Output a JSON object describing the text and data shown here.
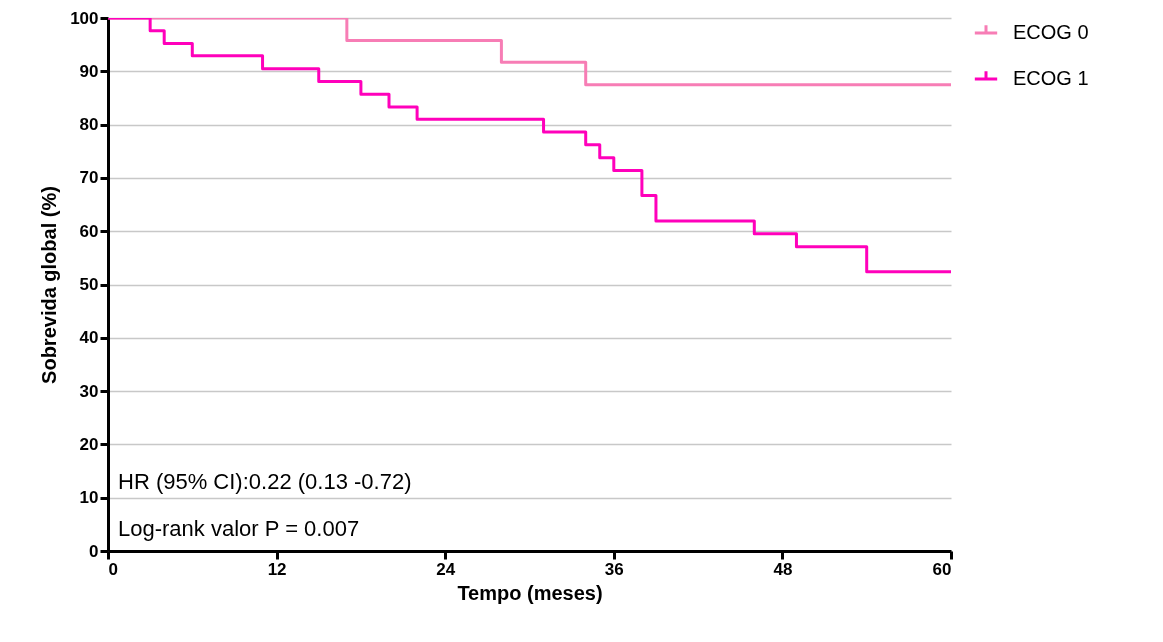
{
  "chart_data": {
    "type": "step",
    "xlabel": "Tempo (meses)",
    "ylabel": "Sobrevida global (%)",
    "xlim": [
      0,
      60
    ],
    "xticks": [
      0,
      12,
      24,
      36,
      48,
      60
    ],
    "ylim": [
      0,
      100
    ],
    "yticks": [
      0,
      10,
      20,
      30,
      40,
      50,
      60,
      70,
      80,
      90,
      100
    ],
    "grid": "y",
    "legend": "top right",
    "line_style": "solid",
    "marker": "none",
    "annotations": [
      "HR (95% CI):0.22 (0.13 -0.72)",
      "Log-rank valor P = 0.007"
    ],
    "series": [
      {
        "name": "ECOG 0",
        "color": "#f77db5",
        "x": [
          0,
          17,
          28,
          34,
          60
        ],
        "values": [
          100,
          95.8,
          91.7,
          87.5,
          87.5
        ]
      },
      {
        "name": "ECOG 1",
        "color": "#ff00bb",
        "x": [
          0,
          3,
          4,
          6,
          11,
          15,
          18,
          20,
          22,
          31,
          34,
          35,
          36,
          38,
          39,
          46,
          49,
          54,
          60
        ],
        "values": [
          100,
          97.6,
          95.2,
          92.9,
          90.5,
          88.1,
          85.7,
          83.3,
          81.0,
          78.6,
          76.2,
          73.8,
          71.4,
          66.7,
          61.9,
          59.5,
          57.1,
          52.4,
          52.4
        ]
      }
    ]
  }
}
